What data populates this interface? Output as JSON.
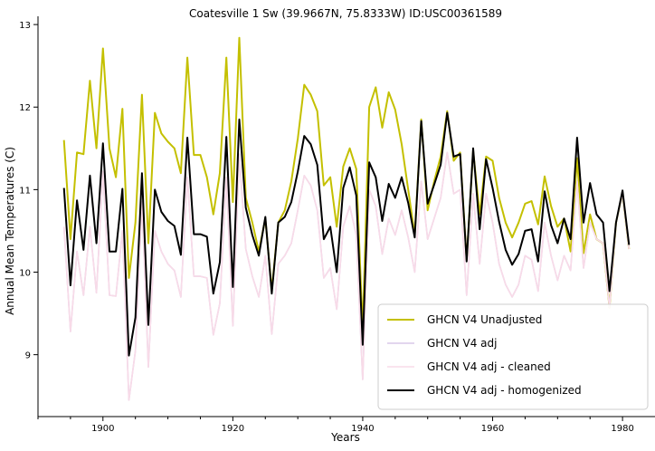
{
  "chart_data": {
    "type": "line",
    "title": "Coatesville 1 Sw (39.9667N, 75.8333W) ID:USC00361589",
    "xlabel": "Years",
    "ylabel": "Annual Mean Temperatures (C)",
    "xlim": [
      1890,
      1985
    ],
    "ylim": [
      8.25,
      13.1
    ],
    "xticks": [
      1900,
      1920,
      1940,
      1960,
      1980
    ],
    "yticks": [
      9,
      10,
      11,
      12,
      13
    ],
    "grid": false,
    "legend_position": "lower-right",
    "x": [
      1894,
      1895,
      1896,
      1897,
      1898,
      1899,
      1900,
      1901,
      1902,
      1903,
      1904,
      1905,
      1906,
      1907,
      1908,
      1909,
      1910,
      1911,
      1912,
      1913,
      1914,
      1915,
      1916,
      1917,
      1918,
      1919,
      1920,
      1921,
      1922,
      1923,
      1924,
      1925,
      1926,
      1927,
      1928,
      1929,
      1930,
      1931,
      1932,
      1933,
      1934,
      1935,
      1936,
      1937,
      1938,
      1939,
      1940,
      1941,
      1942,
      1943,
      1944,
      1945,
      1946,
      1947,
      1948,
      1949,
      1950,
      1951,
      1952,
      1953,
      1954,
      1955,
      1956,
      1957,
      1958,
      1959,
      1960,
      1961,
      1962,
      1963,
      1964,
      1965,
      1966,
      1967,
      1968,
      1969,
      1970,
      1971,
      1972,
      1973,
      1974,
      1975,
      1976,
      1977,
      1978,
      1979,
      1980,
      1981
    ],
    "series": [
      {
        "name": "GHCN V4 Unadjusted",
        "color": "#c4c000",
        "width": 2,
        "values": [
          11.6,
          10.4,
          11.45,
          11.43,
          12.32,
          11.5,
          12.71,
          11.5,
          11.15,
          11.98,
          9.93,
          10.6,
          12.15,
          10.35,
          11.93,
          11.68,
          11.58,
          11.5,
          11.2,
          12.6,
          11.42,
          11.42,
          11.15,
          10.7,
          11.2,
          12.6,
          10.85,
          12.84,
          10.9,
          10.6,
          10.25,
          10.65,
          9.78,
          10.6,
          10.75,
          11.1,
          11.62,
          12.27,
          12.15,
          11.95,
          11.05,
          11.15,
          10.55,
          11.28,
          11.5,
          11.25,
          9.3,
          12.0,
          12.24,
          11.75,
          12.18,
          11.97,
          11.55,
          11.0,
          10.45,
          11.85,
          10.75,
          11.1,
          11.4,
          11.95,
          11.35,
          11.45,
          10.15,
          11.47,
          10.7,
          11.4,
          11.35,
          10.9,
          10.6,
          10.42,
          10.6,
          10.83,
          10.86,
          10.58,
          11.16,
          10.8,
          10.55,
          10.65,
          10.25,
          11.38,
          10.23,
          10.7,
          10.4,
          10.35,
          9.57,
          10.6,
          10.95,
          10.28
        ]
      },
      {
        "name": "GHCN V4 adj",
        "color": "#d8c8e8",
        "width": 1.6,
        "values": [
          10.55,
          9.28,
          10.25,
          9.72,
          10.55,
          9.75,
          11.22,
          9.72,
          9.71,
          10.5,
          8.45,
          9.05,
          10.85,
          8.85,
          10.5,
          10.25,
          10.1,
          10.02,
          9.7,
          11.15,
          9.95,
          9.95,
          9.93,
          9.24,
          9.62,
          11.15,
          9.35,
          11.43,
          10.28,
          9.95,
          9.7,
          10.2,
          9.25,
          10.1,
          10.2,
          10.35,
          10.75,
          11.17,
          11.05,
          10.75,
          9.93,
          10.05,
          9.55,
          10.55,
          10.8,
          10.45,
          8.7,
          11.0,
          10.8,
          10.22,
          10.65,
          10.45,
          10.75,
          10.42,
          10.0,
          11.1,
          10.4,
          10.65,
          10.9,
          11.45,
          10.95,
          11.0,
          9.72,
          10.95,
          10.1,
          10.95,
          10.6,
          10.1,
          9.85,
          9.7,
          9.85,
          10.2,
          10.15,
          9.77,
          10.6,
          10.2,
          9.9,
          10.2,
          10.02,
          11.1,
          10.05,
          10.6,
          10.4,
          10.35,
          9.57,
          10.6,
          10.95,
          10.28
        ]
      },
      {
        "name": "GHCN V4 adj - cleaned",
        "color": "#f8dbe8",
        "width": 1.6,
        "values": [
          10.55,
          9.28,
          10.25,
          9.72,
          10.55,
          9.75,
          11.22,
          9.72,
          9.71,
          10.5,
          8.45,
          9.05,
          10.85,
          8.85,
          10.5,
          10.25,
          10.1,
          10.02,
          9.7,
          11.15,
          9.95,
          9.95,
          9.93,
          9.24,
          9.62,
          11.15,
          9.35,
          11.43,
          10.28,
          9.95,
          9.7,
          10.2,
          9.25,
          10.1,
          10.2,
          10.35,
          10.75,
          11.17,
          11.05,
          10.75,
          9.93,
          10.05,
          9.55,
          10.55,
          10.8,
          10.45,
          8.7,
          11.0,
          10.8,
          10.22,
          10.65,
          10.45,
          10.75,
          10.42,
          10.0,
          11.1,
          10.4,
          10.65,
          10.9,
          11.45,
          10.95,
          11.0,
          9.72,
          10.95,
          10.1,
          10.95,
          10.6,
          10.1,
          9.85,
          9.7,
          9.85,
          10.2,
          10.15,
          9.77,
          10.6,
          10.2,
          9.9,
          10.2,
          10.02,
          11.1,
          10.05,
          10.6,
          10.4,
          10.35,
          9.57,
          10.6,
          10.95,
          10.28
        ]
      },
      {
        "name": "GHCN V4 adj - homogenized",
        "color": "#000000",
        "width": 2,
        "values": [
          11.02,
          9.84,
          10.87,
          10.27,
          11.17,
          10.35,
          11.56,
          10.25,
          10.25,
          11.01,
          8.99,
          9.45,
          11.2,
          9.36,
          11.0,
          10.73,
          10.62,
          10.56,
          10.21,
          11.63,
          10.46,
          10.46,
          10.43,
          9.74,
          10.12,
          11.64,
          9.82,
          11.85,
          10.78,
          10.45,
          10.2,
          10.67,
          9.74,
          10.6,
          10.67,
          10.85,
          11.22,
          11.65,
          11.55,
          11.3,
          10.4,
          10.55,
          10.0,
          11.02,
          11.27,
          10.93,
          9.12,
          11.33,
          11.15,
          10.62,
          11.07,
          10.9,
          11.15,
          10.84,
          10.42,
          11.83,
          10.83,
          11.06,
          11.3,
          11.93,
          11.4,
          11.43,
          10.13,
          11.5,
          10.52,
          11.37,
          11.02,
          10.61,
          10.27,
          10.09,
          10.22,
          10.5,
          10.52,
          10.13,
          10.98,
          10.57,
          10.35,
          10.65,
          10.4,
          11.63,
          10.6,
          11.08,
          10.7,
          10.6,
          9.77,
          10.6,
          10.99,
          10.33
        ]
      }
    ]
  }
}
